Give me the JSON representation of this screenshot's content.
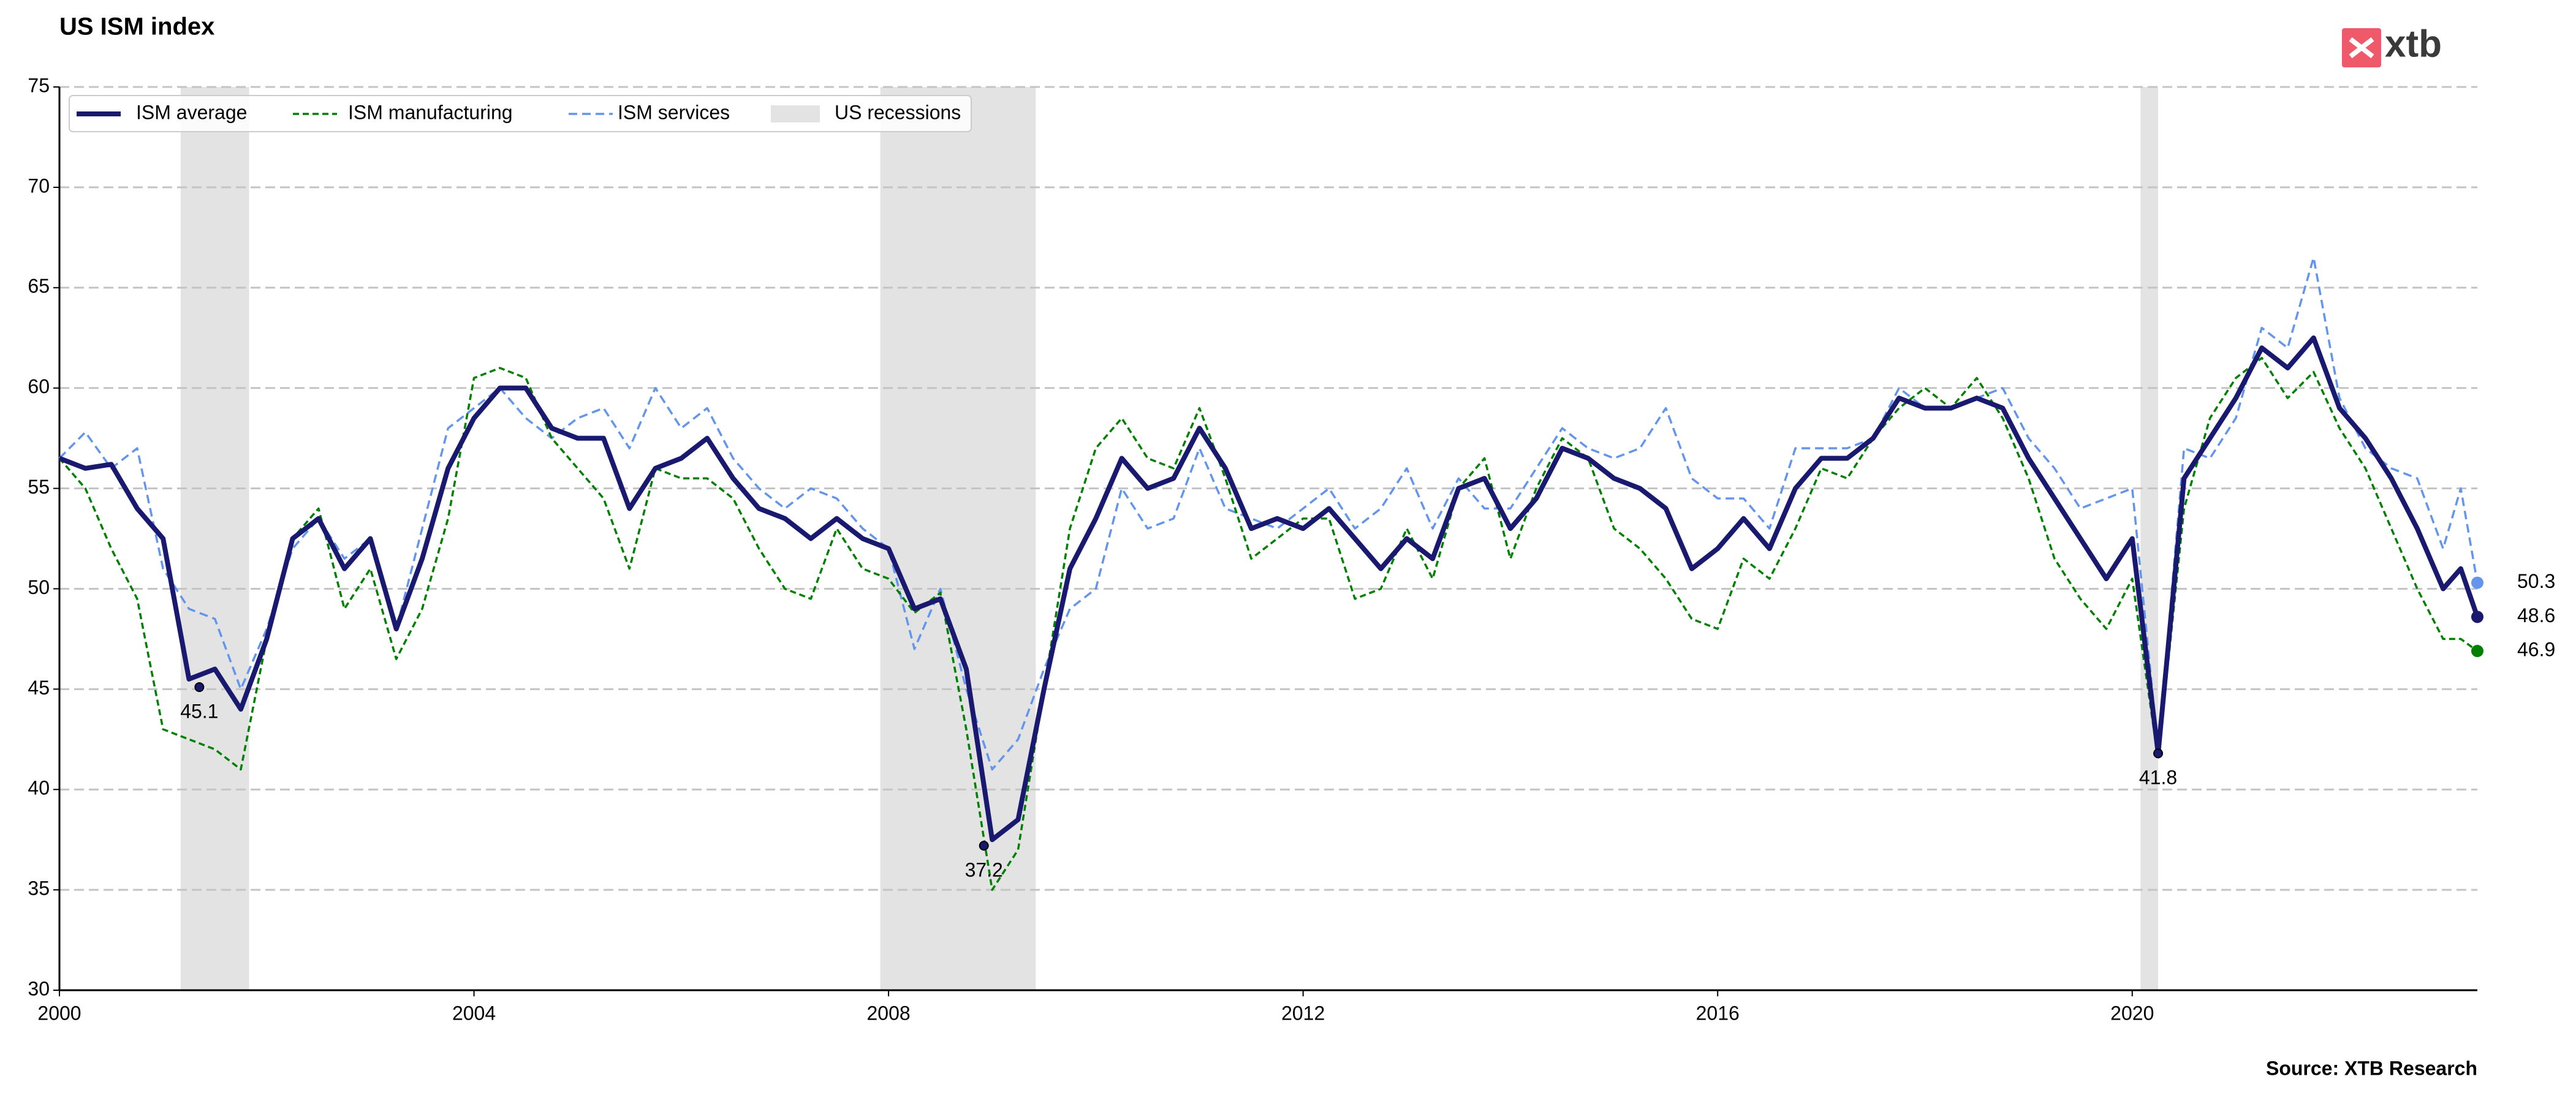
{
  "chart_data": {
    "type": "line",
    "title": "US ISM index",
    "source": "Source: XTB Research",
    "logo": "xtb",
    "xlim": [
      2000,
      2023.33
    ],
    "xticks": [
      2000,
      2004,
      2008,
      2012,
      2016,
      2020
    ],
    "ylim": [
      30,
      75
    ],
    "yticks": [
      30,
      35,
      40,
      45,
      50,
      55,
      60,
      65,
      70,
      75
    ],
    "grid": true,
    "legend": "upper left",
    "x": [
      2000,
      2000.25,
      2000.5,
      2000.75,
      2001,
      2001.25,
      2001.5,
      2001.75,
      2002,
      2002.25,
      2002.5,
      2002.75,
      2003,
      2003.25,
      2003.5,
      2003.75,
      2004,
      2004.25,
      2004.5,
      2004.75,
      2005,
      2005.25,
      2005.5,
      2005.75,
      2006,
      2006.25,
      2006.5,
      2006.75,
      2007,
      2007.25,
      2007.5,
      2007.75,
      2008,
      2008.25,
      2008.5,
      2008.75,
      2009,
      2009.25,
      2009.5,
      2009.75,
      2010,
      2010.25,
      2010.5,
      2010.75,
      2011,
      2011.25,
      2011.5,
      2011.75,
      2012,
      2012.25,
      2012.5,
      2012.75,
      2013,
      2013.25,
      2013.5,
      2013.75,
      2014,
      2014.25,
      2014.5,
      2014.75,
      2015,
      2015.25,
      2015.5,
      2015.75,
      2016,
      2016.25,
      2016.5,
      2016.75,
      2017,
      2017.25,
      2017.5,
      2017.75,
      2018,
      2018.25,
      2018.5,
      2018.75,
      2019,
      2019.25,
      2019.5,
      2019.75,
      2020,
      2020.25,
      2020.5,
      2020.75,
      2021,
      2021.25,
      2021.5,
      2021.75,
      2022,
      2022.25,
      2022.5,
      2022.75,
      2023,
      2023.17,
      2023.33
    ],
    "series": [
      {
        "name": "ISM average",
        "color": "#191970",
        "dash": "none",
        "width": 8,
        "values": [
          56.5,
          56,
          56.2,
          54,
          52.5,
          45.5,
          46,
          44,
          47.5,
          52.5,
          53.5,
          51,
          52.5,
          48,
          51.5,
          56,
          58.5,
          60,
          60,
          58,
          57.5,
          57.5,
          54,
          56,
          56.5,
          57.5,
          55.5,
          54,
          53.5,
          52.5,
          53.5,
          52.5,
          52,
          49,
          49.5,
          46,
          37.5,
          38.5,
          45,
          51,
          53.5,
          56.5,
          55,
          55.5,
          58,
          56,
          53,
          53.5,
          53,
          54,
          52.5,
          51,
          52.5,
          51.5,
          55,
          55.5,
          53,
          54.5,
          57,
          56.5,
          55.5,
          55,
          54,
          51,
          52,
          53.5,
          52,
          55,
          56.5,
          56.5,
          57.5,
          59.5,
          59,
          59,
          59.5,
          59,
          56.5,
          54.5,
          52.5,
          50.5,
          52.5,
          41.8,
          55.5,
          57.5,
          59.5,
          62,
          61,
          62.5,
          59,
          57.5,
          55.5,
          53,
          50,
          51,
          48.6
        ]
      },
      {
        "name": "ISM manufacturing",
        "color": "#008000",
        "dash": "10,6",
        "width": 3.5,
        "values": [
          56.5,
          55,
          52,
          49.5,
          43,
          42.5,
          42,
          41,
          47.5,
          52.5,
          54,
          49,
          51,
          46.5,
          49,
          53.5,
          60.5,
          61,
          60.5,
          57.5,
          56,
          54.5,
          51,
          56,
          55.5,
          55.5,
          54.5,
          52,
          50,
          49.5,
          53,
          51,
          50.5,
          48.8,
          49.8,
          43,
          35,
          37,
          45,
          53,
          57,
          58.5,
          56.5,
          56,
          59,
          55.5,
          51.5,
          52.5,
          53.5,
          53.5,
          49.5,
          50,
          53,
          50.5,
          55,
          56.5,
          51.5,
          55,
          57.5,
          56.5,
          53,
          52,
          50.5,
          48.5,
          48,
          51.5,
          50.5,
          53,
          56,
          55.5,
          57.5,
          59,
          60,
          59,
          60.5,
          58.5,
          55.5,
          51.5,
          49.5,
          48,
          50.5,
          41.5,
          54,
          58.5,
          60.5,
          61.5,
          59.5,
          60.8,
          58,
          56,
          53,
          50,
          47.5,
          47.5,
          46.9
        ]
      },
      {
        "name": "ISM services",
        "color": "#6495ed",
        "dash": "14,8",
        "width": 3.5,
        "values": [
          56.5,
          57.8,
          56,
          57,
          51,
          49,
          48.5,
          45,
          48,
          52,
          53.5,
          51.5,
          52.5,
          48,
          53,
          58,
          59,
          60,
          58.5,
          57.5,
          58.5,
          59,
          57,
          60,
          58,
          59,
          56.5,
          55,
          54,
          55,
          54.5,
          53,
          52,
          47,
          50,
          45,
          41,
          42.5,
          46,
          49,
          50,
          55,
          53,
          53.5,
          57,
          54,
          53.5,
          53,
          54,
          55,
          53,
          54,
          56,
          53,
          55.5,
          54,
          54,
          56,
          58,
          57,
          56.5,
          57,
          59,
          55.5,
          54.5,
          54.5,
          53,
          57,
          57,
          57,
          57.5,
          60,
          59,
          59,
          59.5,
          60,
          57.5,
          56,
          54,
          54.5,
          55,
          42,
          57,
          56.5,
          58.5,
          63,
          62,
          66.5,
          59.5,
          57,
          56,
          55.5,
          52,
          55,
          50.3
        ]
      }
    ],
    "recessions": {
      "name": "US recessions",
      "color": "#e3e3e3",
      "spans": [
        [
          2001.17,
          2001.83
        ],
        [
          2007.92,
          2009.42
        ],
        [
          2020.08,
          2020.25
        ]
      ]
    },
    "annotations": [
      {
        "x": 2001.35,
        "y": 45.1
      },
      {
        "x": 2008.92,
        "y": 37.2
      },
      {
        "x": 2020.25,
        "y": 41.8
      }
    ]
  }
}
